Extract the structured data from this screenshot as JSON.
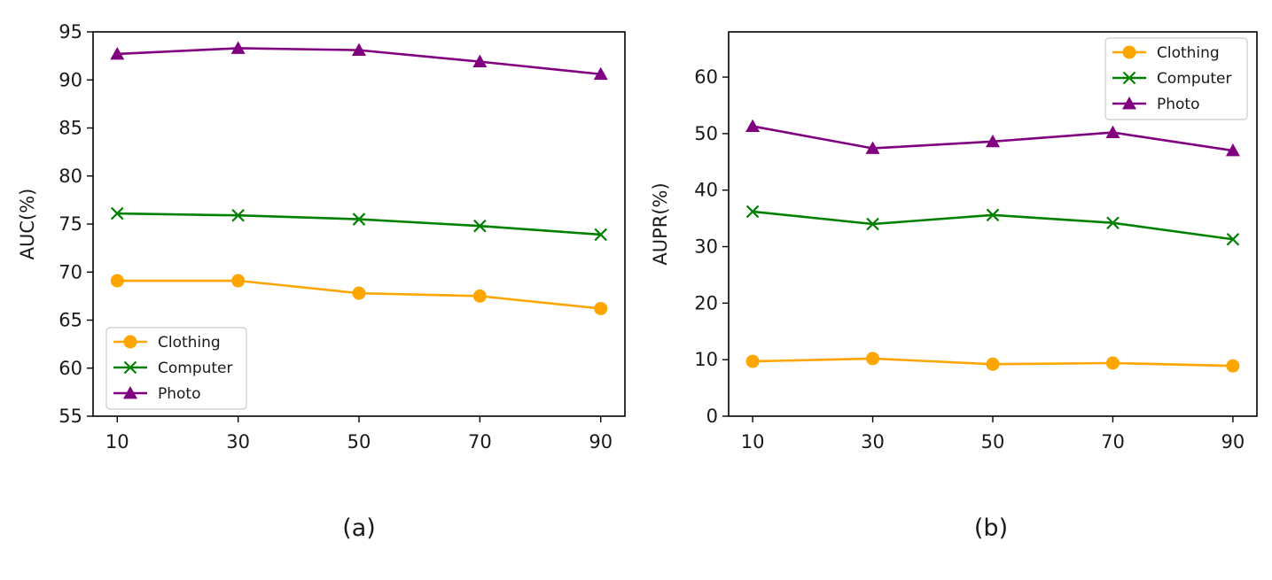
{
  "chart_data": [
    {
      "type": "line",
      "panel": "a",
      "caption": "(a)",
      "ylabel": "AUC(%)",
      "xlabel": "",
      "x": [
        10,
        30,
        50,
        70,
        90
      ],
      "xlim": [
        6,
        94
      ],
      "ylim": [
        55,
        95
      ],
      "xticks": [
        "10",
        "30",
        "50",
        "70",
        "90"
      ],
      "yticks": [
        "55",
        "60",
        "65",
        "70",
        "75",
        "80",
        "85",
        "90",
        "95"
      ],
      "legend_position": "lower-left",
      "series": [
        {
          "name": "Clothing",
          "color": "#ffa500",
          "marker": "circle",
          "values": [
            69.1,
            69.1,
            67.8,
            67.5,
            66.2
          ]
        },
        {
          "name": "Computer",
          "color": "#008000",
          "marker": "x",
          "values": [
            76.1,
            75.9,
            75.5,
            74.8,
            73.9
          ]
        },
        {
          "name": "Photo",
          "color": "#800080",
          "marker": "triangle",
          "values": [
            92.7,
            93.3,
            93.1,
            91.9,
            90.6
          ]
        }
      ]
    },
    {
      "type": "line",
      "panel": "b",
      "caption": "(b)",
      "ylabel": "AUPR(%)",
      "xlabel": "",
      "x": [
        10,
        30,
        50,
        70,
        90
      ],
      "xlim": [
        6,
        94
      ],
      "ylim": [
        0,
        68
      ],
      "xticks": [
        "10",
        "30",
        "50",
        "70",
        "90"
      ],
      "yticks": [
        "0",
        "10",
        "20",
        "30",
        "40",
        "50",
        "60"
      ],
      "legend_position": "top-right",
      "series": [
        {
          "name": "Clothing",
          "color": "#ffa500",
          "marker": "circle",
          "values": [
            9.7,
            10.2,
            9.2,
            9.4,
            8.9
          ]
        },
        {
          "name": "Computer",
          "color": "#008000",
          "marker": "x",
          "values": [
            36.2,
            34.0,
            35.6,
            34.2,
            31.3
          ]
        },
        {
          "name": "Photo",
          "color": "#800080",
          "marker": "triangle",
          "values": [
            51.3,
            47.4,
            48.6,
            50.2,
            47.0
          ]
        }
      ]
    }
  ]
}
